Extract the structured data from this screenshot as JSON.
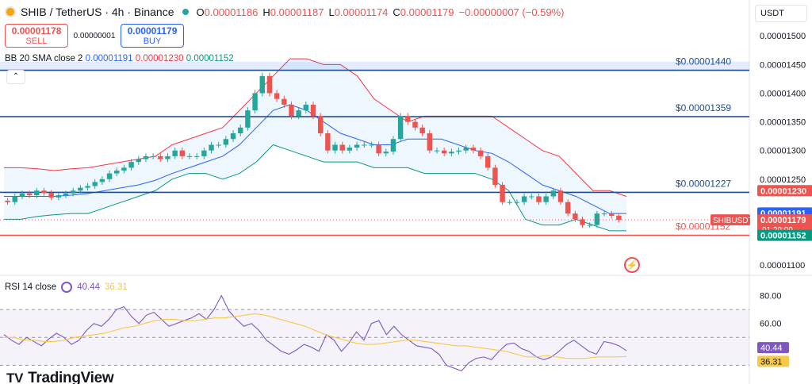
{
  "header": {
    "title": "SHIB / TetherUS · 4h · Binance",
    "o_label": "O",
    "o_value": "0.00001186",
    "h_label": "H",
    "h_value": "0.00001187",
    "l_label": "L",
    "l_value": "0.00001174",
    "c_label": "C",
    "c_value": "0.00001179",
    "change": "−0.00000007 (−0.59%)"
  },
  "trade": {
    "sell_price": "0.00001178",
    "sell_label": "SELL",
    "spread": "0.00000001",
    "buy_price": "0.00001179",
    "buy_label": "BUY"
  },
  "currency": "USDT",
  "bb_legend": {
    "name": "BB 20 SMA close 2",
    "basis": "0.00001191",
    "upper": "0.00001230",
    "lower": "0.00001152"
  },
  "collapse_icon": "chevron-up-icon",
  "rsi_legend": {
    "name": "RSI 14 close",
    "rsi": "40.44",
    "sma": "36.31"
  },
  "brand": {
    "name": "TradingView",
    "mark": "TV"
  },
  "colors": {
    "up": "#26a69a",
    "down": "#ef5350",
    "basis": "#2962ff",
    "upper": "#f23645",
    "lower": "#089981",
    "rsi": "#7e57c2",
    "rsi_ma": "#f7c948",
    "hline": "#1e4f8c"
  },
  "chart_data": [
    {
      "type": "candlestick",
      "ylim": [
        1.085e-05,
        1.51e-05
      ],
      "y_ticks": [
        "0.00001500",
        "0.00001450",
        "0.00001400",
        "0.00001350",
        "0.00001300",
        "0.00001250",
        "0.00001100"
      ],
      "horizontal_levels": [
        {
          "label": "$0.00001440",
          "value": 1.44e-05,
          "color": "#1e4f8c"
        },
        {
          "label": "$0.00001359",
          "value": 1.359e-05,
          "color": "#1e4f8c"
        },
        {
          "label": "$0.00001227",
          "value": 1.227e-05,
          "color": "#1e4f8c"
        },
        {
          "label": "$0.00001152",
          "value": 1.152e-05,
          "color": "#ef5350"
        }
      ],
      "price_tags": [
        {
          "text": "0.00001230",
          "value": 1.23e-05,
          "color": "#ef5350"
        },
        {
          "text": "0.00001191",
          "value": 1.191e-05,
          "color": "#2962ff"
        },
        {
          "text": "0.00001179",
          "value": 1.179e-05,
          "color": "#ef5350",
          "countdown": "01:29:09"
        },
        {
          "text": "0.00001152",
          "value": 1.152e-05,
          "color": "#089981"
        }
      ],
      "symbol_tag": "SHIBUSDT",
      "close_series": [
        1.21e-05,
        1.22e-05,
        1.225e-05,
        1.222e-05,
        1.23e-05,
        1.226e-05,
        1.218e-05,
        1.222e-05,
        1.225e-05,
        1.23e-05,
        1.235e-05,
        1.238e-05,
        1.245e-05,
        1.25e-05,
        1.26e-05,
        1.265e-05,
        1.27e-05,
        1.28e-05,
        1.285e-05,
        1.29e-05,
        1.29e-05,
        1.285e-05,
        1.29e-05,
        1.3e-05,
        1.29e-05,
        1.29e-05,
        1.29e-05,
        1.3e-05,
        1.31e-05,
        1.31e-05,
        1.32e-05,
        1.33e-05,
        1.34e-05,
        1.37e-05,
        1.4e-05,
        1.43e-05,
        1.4e-05,
        1.39e-05,
        1.38e-05,
        1.36e-05,
        1.37e-05,
        1.38e-05,
        1.36e-05,
        1.33e-05,
        1.3e-05,
        1.31e-05,
        1.3e-05,
        1.305e-05,
        1.31e-05,
        1.31e-05,
        1.31e-05,
        1.295e-05,
        1.298e-05,
        1.32e-05,
        1.36e-05,
        1.35e-05,
        1.34e-05,
        1.33e-05,
        1.3e-05,
        1.3e-05,
        1.295e-05,
        1.298e-05,
        1.3e-05,
        1.305e-05,
        1.3e-05,
        1.29e-05,
        1.27e-05,
        1.24e-05,
        1.21e-05,
        1.21e-05,
        1.21e-05,
        1.22e-05,
        1.22e-05,
        1.21e-05,
        1.22e-05,
        1.23e-05,
        1.21e-05,
        1.19e-05,
        1.18e-05,
        1.17e-05,
        1.17e-05,
        1.19e-05,
        1.19e-05,
        1.186e-05,
        1.179e-05
      ],
      "bb_upper": [
        1.27e-05,
        1.27e-05,
        1.268e-05,
        1.265e-05,
        1.268e-05,
        1.27e-05,
        1.275e-05,
        1.28e-05,
        1.285e-05,
        1.29e-05,
        1.31e-05,
        1.32e-05,
        1.33e-05,
        1.34e-05,
        1.37e-05,
        1.4e-05,
        1.43e-05,
        1.46e-05,
        1.46e-05,
        1.45e-05,
        1.45e-05,
        1.43e-05,
        1.39e-05,
        1.37e-05,
        1.35e-05,
        1.36e-05,
        1.36e-05,
        1.36e-05,
        1.36e-05,
        1.36e-05,
        1.34e-05,
        1.32e-05,
        1.3e-05,
        1.29e-05,
        1.26e-05,
        1.23e-05,
        1.23e-05,
        1.22e-05
      ],
      "bb_basis": [
        1.22e-05,
        1.22e-05,
        1.22e-05,
        1.22e-05,
        1.222e-05,
        1.225e-05,
        1.23e-05,
        1.235e-05,
        1.24e-05,
        1.248e-05,
        1.26e-05,
        1.27e-05,
        1.28e-05,
        1.29e-05,
        1.31e-05,
        1.34e-05,
        1.37e-05,
        1.38e-05,
        1.37e-05,
        1.35e-05,
        1.33e-05,
        1.32e-05,
        1.31e-05,
        1.31e-05,
        1.32e-05,
        1.32e-05,
        1.32e-05,
        1.31e-05,
        1.3e-05,
        1.295e-05,
        1.28e-05,
        1.26e-05,
        1.24e-05,
        1.23e-05,
        1.22e-05,
        1.205e-05,
        1.19e-05,
        1.19e-05
      ],
      "bb_lower": [
        1.18e-05,
        1.18e-05,
        1.185e-05,
        1.188e-05,
        1.19e-05,
        1.19e-05,
        1.2e-05,
        1.21e-05,
        1.22e-05,
        1.23e-05,
        1.25e-05,
        1.26e-05,
        1.26e-05,
        1.25e-05,
        1.26e-05,
        1.28e-05,
        1.31e-05,
        1.3e-05,
        1.29e-05,
        1.28e-05,
        1.28e-05,
        1.28e-05,
        1.27e-05,
        1.27e-05,
        1.27e-05,
        1.26e-05,
        1.26e-05,
        1.26e-05,
        1.26e-05,
        1.25e-05,
        1.23e-05,
        1.18e-05,
        1.17e-05,
        1.17e-05,
        1.18e-05,
        1.17e-05,
        1.16e-05,
        1.16e-05
      ]
    },
    {
      "type": "line",
      "title": "RSI 14 close",
      "ylim": [
        20,
        90
      ],
      "y_ticks": [
        "80.00",
        "60.00"
      ],
      "levels": [
        70,
        50,
        30
      ],
      "series": [
        {
          "name": "RSI",
          "values": [
            52,
            48,
            45,
            50,
            47,
            44,
            49,
            53,
            50,
            45,
            48,
            55,
            60,
            58,
            63,
            70,
            72,
            65,
            60,
            66,
            68,
            63,
            58,
            60,
            62,
            64,
            67,
            63,
            70,
            80,
            69,
            63,
            58,
            60,
            55,
            48,
            44,
            40,
            38,
            41,
            45,
            43,
            40,
            52,
            48,
            40,
            46,
            54,
            48,
            60,
            62,
            52,
            58,
            52,
            48,
            44,
            43,
            42,
            38,
            30,
            28,
            26,
            32,
            35,
            36,
            34,
            40,
            45,
            46,
            42,
            40,
            36,
            34,
            36,
            40,
            45,
            48,
            44,
            40,
            38,
            47,
            46,
            44,
            40.44
          ]
        },
        {
          "name": "RSI SMA",
          "values": [
            50,
            50,
            48,
            48,
            47,
            47,
            48,
            50,
            51,
            52,
            53,
            55,
            57,
            58,
            60,
            62,
            63,
            63,
            62,
            62,
            63,
            64,
            64,
            65,
            66,
            67,
            66,
            64,
            62,
            60,
            58,
            55,
            52,
            50,
            48,
            46,
            45,
            45,
            46,
            47,
            48,
            48,
            47,
            46,
            45,
            44,
            44,
            43,
            42,
            41,
            40,
            38,
            36,
            36,
            37,
            36,
            35,
            35,
            35,
            36,
            36,
            36,
            36.31
          ]
        }
      ]
    }
  ]
}
